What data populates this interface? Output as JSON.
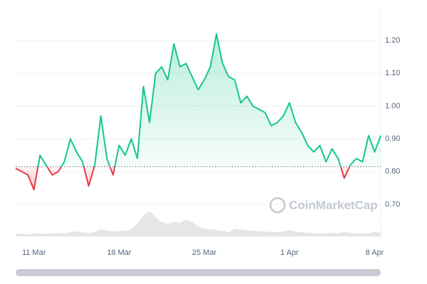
{
  "chart_data": {
    "type": "line",
    "categories": [
      null,
      null,
      null,
      "11 Mar",
      null,
      null,
      null,
      null,
      null,
      null,
      null,
      null,
      null,
      null,
      null,
      null,
      null,
      "18 Mar",
      null,
      null,
      null,
      null,
      null,
      null,
      null,
      null,
      null,
      null,
      null,
      null,
      null,
      "25 Mar",
      null,
      null,
      null,
      null,
      null,
      null,
      null,
      null,
      null,
      null,
      null,
      null,
      null,
      "1 Apr",
      null,
      null,
      null,
      null,
      null,
      null,
      null,
      null,
      null,
      null,
      null,
      null,
      null,
      "8 Apr",
      null
    ],
    "series": [
      {
        "color": "#16c784",
        "below_color": "#ea3943",
        "values": [
          0.81,
          0.8,
          0.79,
          0.745,
          0.85,
          0.82,
          0.79,
          0.8,
          0.83,
          0.9,
          0.86,
          0.83,
          0.756,
          0.82,
          0.97,
          0.84,
          0.79,
          0.88,
          0.85,
          0.9,
          0.84,
          1.06,
          0.95,
          1.1,
          1.12,
          1.08,
          1.19,
          1.12,
          1.13,
          1.09,
          1.05,
          1.08,
          1.12,
          1.22,
          1.13,
          1.09,
          1.08,
          1.01,
          1.03,
          1.0,
          0.99,
          0.98,
          0.94,
          0.95,
          0.97,
          1.01,
          0.95,
          0.92,
          0.88,
          0.86,
          0.88,
          0.83,
          0.87,
          0.84,
          0.78,
          0.82,
          0.84,
          0.83,
          0.91,
          0.86,
          0.91
        ]
      },
      {
        "axis": "y2",
        "color": "#e6e6e6",
        "values": [
          8,
          7,
          6,
          9,
          8,
          7,
          9,
          10,
          9,
          12,
          14,
          12,
          10,
          13,
          20,
          17,
          14,
          15,
          16,
          20,
          35,
          60,
          72,
          55,
          40,
          35,
          42,
          38,
          48,
          40,
          28,
          22,
          20,
          18,
          16,
          12,
          22,
          20,
          18,
          16,
          15,
          14,
          12,
          13,
          14,
          18,
          14,
          12,
          10,
          9,
          10,
          9,
          10,
          9,
          12,
          10,
          9,
          8,
          9,
          14,
          10
        ]
      }
    ],
    "baseline": 0.815,
    "ylim": [
      0.6,
      1.3
    ],
    "yticks": [
      {
        "value": 0.7,
        "label": "0.70"
      },
      {
        "value": 0.8,
        "label": "0.80"
      },
      {
        "value": 0.9,
        "label": "0.90"
      },
      {
        "value": 1.0,
        "label": "1.00"
      },
      {
        "value": 1.1,
        "label": "1.10"
      },
      {
        "value": 1.2,
        "label": "1.20"
      }
    ],
    "y2lim": [
      0,
      100
    ],
    "grid": true,
    "watermark": "CoinMarketCap"
  }
}
